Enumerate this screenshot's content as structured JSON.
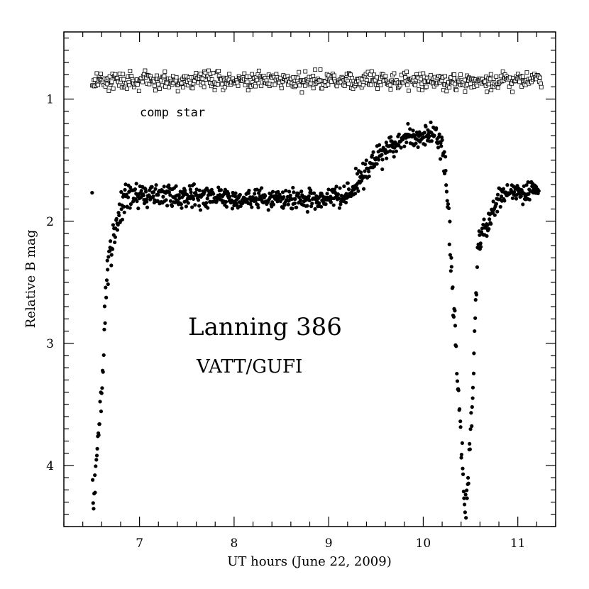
{
  "chart_data": {
    "type": "scatter",
    "title": "",
    "xlabel": "UT hours (June 22, 2009)",
    "ylabel": "Relative B mag",
    "xlim": [
      6.2,
      11.4
    ],
    "ylim": [
      4.5,
      0.45
    ],
    "y_inverted": true,
    "x_ticks": [
      7,
      8,
      9,
      10,
      11
    ],
    "x_tick_labels": [
      "7",
      "8",
      "9",
      "10",
      "11"
    ],
    "y_ticks": [
      1,
      2,
      3,
      4
    ],
    "y_tick_labels": [
      "1",
      "2",
      "3",
      "4"
    ],
    "grid": false,
    "annotations": {
      "target_name": "Lanning 386",
      "instrument": "VATT/GUFI",
      "comp_label": "comp star"
    },
    "series": [
      {
        "name": "comp star",
        "marker": "open-square",
        "x_start": 6.5,
        "x_end": 11.25,
        "mean_mag": 0.85,
        "scatter_mag": 0.06
      },
      {
        "name": "Lanning 386",
        "marker": "filled-circle",
        "profile": [
          [
            6.5,
            4.3
          ],
          [
            6.55,
            3.95
          ],
          [
            6.6,
            3.45
          ],
          [
            6.63,
            2.8
          ],
          [
            6.67,
            2.3
          ],
          [
            6.72,
            2.15
          ],
          [
            6.77,
            2.0
          ],
          [
            6.82,
            1.82
          ],
          [
            6.9,
            1.78
          ],
          [
            7.5,
            1.8
          ],
          [
            8.0,
            1.82
          ],
          [
            8.5,
            1.82
          ],
          [
            9.0,
            1.82
          ],
          [
            9.2,
            1.78
          ],
          [
            9.35,
            1.62
          ],
          [
            9.5,
            1.5
          ],
          [
            9.7,
            1.35
          ],
          [
            9.9,
            1.3
          ],
          [
            10.1,
            1.3
          ],
          [
            10.2,
            1.4
          ],
          [
            10.25,
            1.7
          ],
          [
            10.3,
            2.4
          ],
          [
            10.34,
            3.0
          ],
          [
            10.38,
            3.6
          ],
          [
            10.42,
            4.1
          ],
          [
            10.45,
            4.4
          ],
          [
            10.48,
            4.1
          ],
          [
            10.51,
            3.6
          ],
          [
            10.54,
            3.0
          ],
          [
            10.57,
            2.3
          ],
          [
            10.62,
            2.1
          ],
          [
            10.7,
            2.0
          ],
          [
            10.8,
            1.8
          ],
          [
            10.9,
            1.75
          ],
          [
            11.0,
            1.75
          ],
          [
            11.1,
            1.75
          ],
          [
            11.22,
            1.72
          ]
        ],
        "scatter_mag": 0.05
      }
    ]
  }
}
